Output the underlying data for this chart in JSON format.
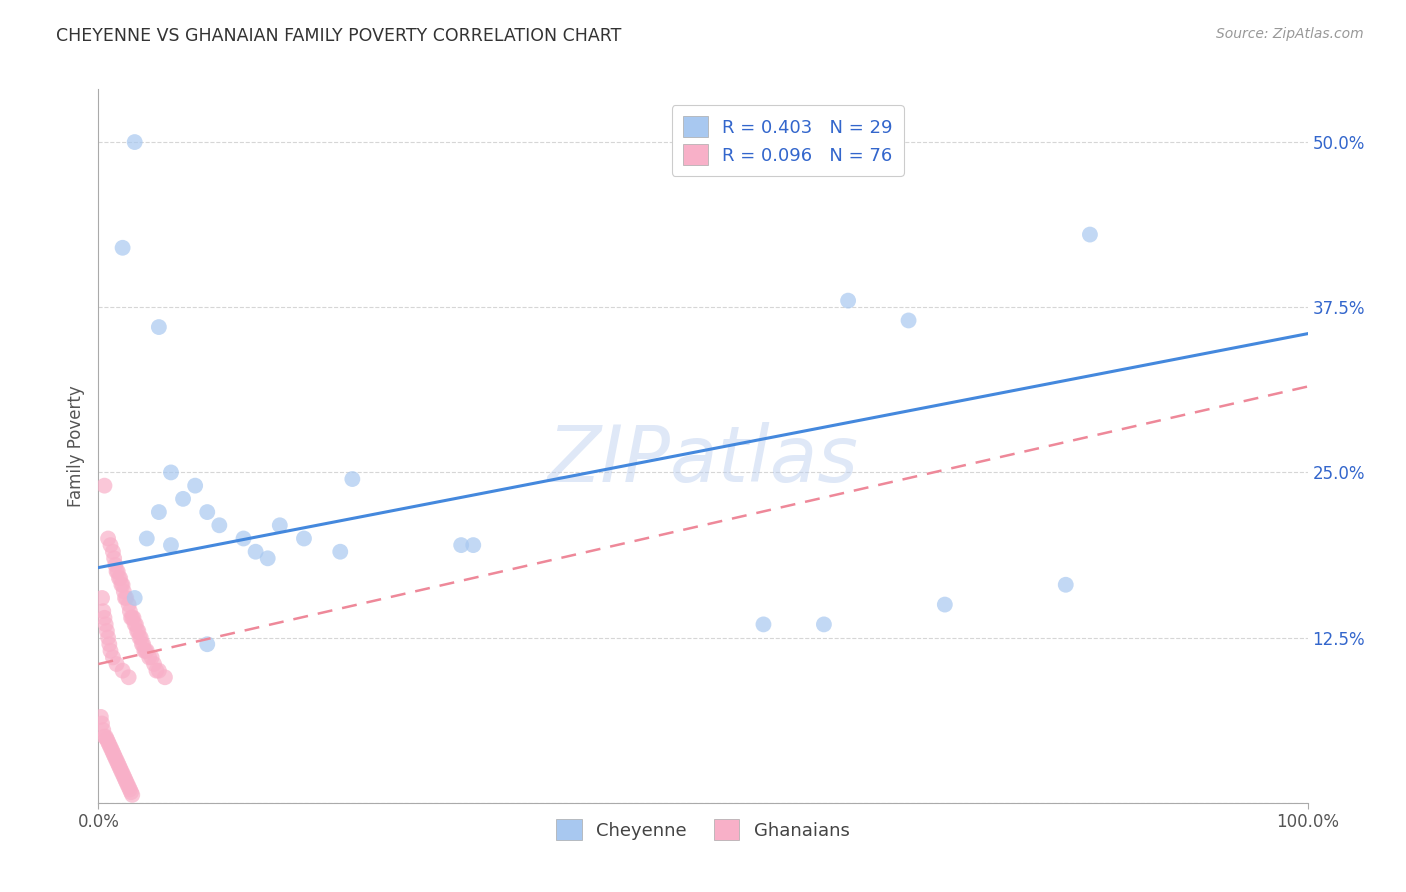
{
  "title": "CHEYENNE VS GHANAIAN FAMILY POVERTY CORRELATION CHART",
  "source": "Source: ZipAtlas.com",
  "ylabel": "Family Poverty",
  "watermark": "ZIPatlas",
  "cheyenne_R": 0.403,
  "cheyenne_N": 29,
  "ghanaian_R": 0.096,
  "ghanaian_N": 76,
  "cheyenne_color": "#a8c8f0",
  "ghanaian_color": "#f8b0c8",
  "cheyenne_line_color": "#4488dd",
  "ghanaian_line_color": "#ee8899",
  "legend_text_color": "#3366cc",
  "title_color": "#333333",
  "cheyenne_x": [
    0.02,
    0.03,
    0.05,
    0.06,
    0.07,
    0.08,
    0.09,
    0.1,
    0.12,
    0.13,
    0.15,
    0.17,
    0.2,
    0.21,
    0.3,
    0.31,
    0.55,
    0.6,
    0.62,
    0.67,
    0.7,
    0.8,
    0.82,
    0.03,
    0.04,
    0.05,
    0.06,
    0.09,
    0.14
  ],
  "cheyenne_y": [
    0.42,
    0.5,
    0.36,
    0.25,
    0.23,
    0.24,
    0.22,
    0.21,
    0.2,
    0.19,
    0.21,
    0.2,
    0.19,
    0.245,
    0.195,
    0.195,
    0.135,
    0.135,
    0.38,
    0.365,
    0.15,
    0.165,
    0.43,
    0.155,
    0.2,
    0.22,
    0.195,
    0.12,
    0.185
  ],
  "ghanaian_x": [
    0.005,
    0.008,
    0.01,
    0.012,
    0.013,
    0.014,
    0.015,
    0.016,
    0.017,
    0.018,
    0.019,
    0.02,
    0.021,
    0.022,
    0.023,
    0.025,
    0.026,
    0.027,
    0.028,
    0.029,
    0.03,
    0.031,
    0.032,
    0.033,
    0.034,
    0.035,
    0.036,
    0.037,
    0.038,
    0.039,
    0.04,
    0.042,
    0.044,
    0.046,
    0.048,
    0.05,
    0.055,
    0.002,
    0.003,
    0.004,
    0.005,
    0.006,
    0.007,
    0.008,
    0.009,
    0.01,
    0.011,
    0.012,
    0.013,
    0.014,
    0.015,
    0.016,
    0.017,
    0.018,
    0.019,
    0.02,
    0.021,
    0.022,
    0.023,
    0.024,
    0.025,
    0.026,
    0.027,
    0.028,
    0.003,
    0.004,
    0.005,
    0.006,
    0.007,
    0.008,
    0.009,
    0.01,
    0.012,
    0.015,
    0.02,
    0.025
  ],
  "ghanaian_y": [
    0.24,
    0.2,
    0.195,
    0.19,
    0.185,
    0.18,
    0.175,
    0.175,
    0.17,
    0.17,
    0.165,
    0.165,
    0.16,
    0.155,
    0.155,
    0.15,
    0.145,
    0.14,
    0.14,
    0.14,
    0.135,
    0.135,
    0.13,
    0.13,
    0.125,
    0.125,
    0.12,
    0.12,
    0.115,
    0.115,
    0.115,
    0.11,
    0.11,
    0.105,
    0.1,
    0.1,
    0.095,
    0.065,
    0.06,
    0.055,
    0.05,
    0.05,
    0.048,
    0.046,
    0.044,
    0.042,
    0.04,
    0.038,
    0.036,
    0.034,
    0.032,
    0.03,
    0.028,
    0.026,
    0.024,
    0.022,
    0.02,
    0.018,
    0.016,
    0.014,
    0.012,
    0.01,
    0.008,
    0.006,
    0.155,
    0.145,
    0.14,
    0.135,
    0.13,
    0.125,
    0.12,
    0.115,
    0.11,
    0.105,
    0.1,
    0.095
  ],
  "xlim": [
    0.0,
    1.0
  ],
  "ylim": [
    0.0,
    0.54
  ],
  "yticks": [
    0.0,
    0.125,
    0.25,
    0.375,
    0.5
  ],
  "ytick_labels": [
    "",
    "12.5%",
    "25.0%",
    "37.5%",
    "50.0%"
  ],
  "cheyenne_trend_x0": 0.0,
  "cheyenne_trend_y0": 0.178,
  "cheyenne_trend_x1": 1.0,
  "cheyenne_trend_y1": 0.355,
  "ghanaian_trend_x0": 0.0,
  "ghanaian_trend_y0": 0.105,
  "ghanaian_trend_x1": 1.0,
  "ghanaian_trend_y1": 0.315,
  "grid_color": "#cccccc",
  "background_color": "#ffffff"
}
